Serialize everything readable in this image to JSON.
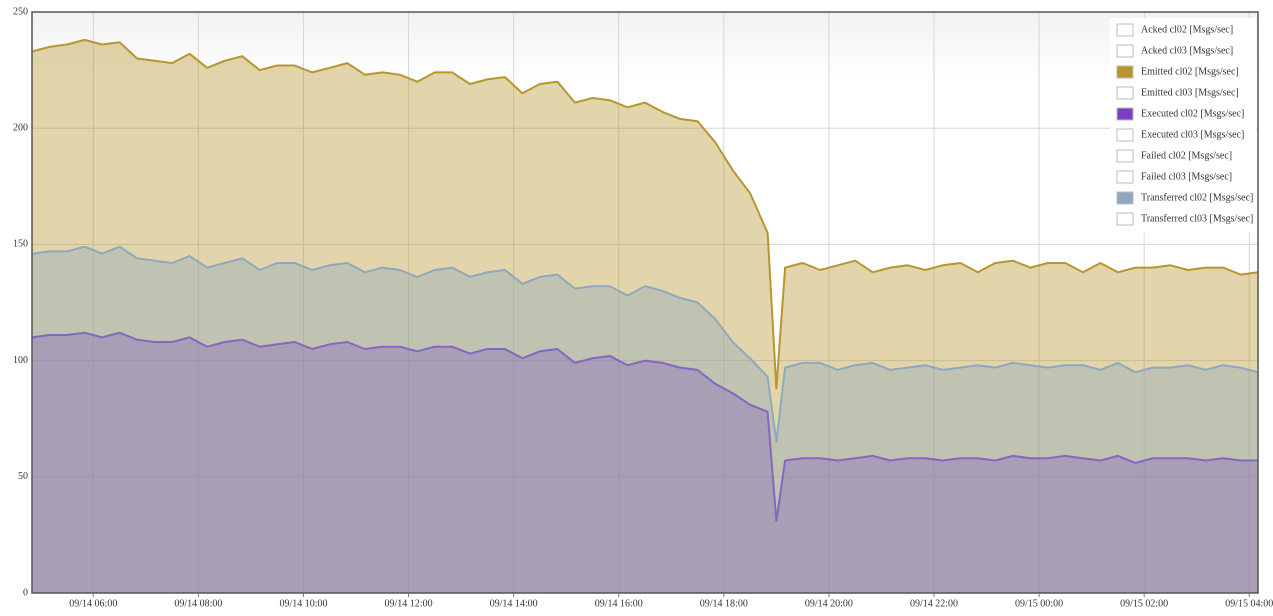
{
  "chart_data": {
    "type": "area",
    "x": [
      "09/14 04:50",
      "09/14 05:10",
      "09/14 05:30",
      "09/14 05:50",
      "09/14 06:10",
      "09/14 06:30",
      "09/14 06:50",
      "09/14 07:10",
      "09/14 07:30",
      "09/14 07:50",
      "09/14 08:10",
      "09/14 08:30",
      "09/14 08:50",
      "09/14 09:10",
      "09/14 09:30",
      "09/14 09:50",
      "09/14 10:10",
      "09/14 10:30",
      "09/14 10:50",
      "09/14 11:10",
      "09/14 11:30",
      "09/14 11:50",
      "09/14 12:10",
      "09/14 12:30",
      "09/14 12:50",
      "09/14 13:10",
      "09/14 13:30",
      "09/14 13:50",
      "09/14 14:10",
      "09/14 14:30",
      "09/14 14:50",
      "09/14 15:10",
      "09/14 15:30",
      "09/14 15:50",
      "09/14 16:10",
      "09/14 16:30",
      "09/14 16:50",
      "09/14 17:10",
      "09/14 17:30",
      "09/14 17:50",
      "09/14 18:10",
      "09/14 18:30",
      "09/14 18:50",
      "09/14 19:00",
      "09/14 19:10",
      "09/14 19:30",
      "09/14 19:50",
      "09/14 20:10",
      "09/14 20:30",
      "09/14 20:50",
      "09/14 21:10",
      "09/14 21:30",
      "09/14 21:50",
      "09/14 22:10",
      "09/14 22:30",
      "09/14 22:50",
      "09/14 23:10",
      "09/14 23:30",
      "09/14 23:50",
      "09/15 00:10",
      "09/15 00:30",
      "09/15 00:50",
      "09/15 01:10",
      "09/15 01:30",
      "09/15 01:50",
      "09/15 02:10",
      "09/15 02:30",
      "09/15 02:50",
      "09/15 03:10",
      "09/15 03:30",
      "09/15 03:50",
      "09/15 04:10"
    ],
    "xlim": [
      "09/14 04:50",
      "09/15 04:10"
    ],
    "xticks": [
      "09/14 06:00",
      "09/14 08:00",
      "09/14 10:00",
      "09/14 12:00",
      "09/14 14:00",
      "09/14 16:00",
      "09/14 18:00",
      "09/14 20:00",
      "09/14 22:00",
      "09/15 00:00",
      "09/15 02:00",
      "09/15 04:00"
    ],
    "ylim": [
      0,
      250
    ],
    "yticks": [
      0,
      50,
      100,
      150,
      200,
      250
    ],
    "grid": true,
    "legend": "top-right",
    "series": [
      {
        "name": "Acked cl02 [Msgs/sec]",
        "color": "#ffffff",
        "visible": false
      },
      {
        "name": "Acked cl03 [Msgs/sec]",
        "color": "#ffffff",
        "visible": false
      },
      {
        "name": "Emitted cl02 [Msgs/sec]",
        "color": "#b8962e",
        "visible": true,
        "values": [
          233,
          235,
          236,
          238,
          236,
          237,
          230,
          229,
          228,
          232,
          226,
          229,
          231,
          225,
          227,
          227,
          224,
          226,
          228,
          223,
          224,
          223,
          220,
          224,
          224,
          219,
          221,
          222,
          215,
          219,
          220,
          211,
          213,
          212,
          209,
          211,
          207,
          204,
          203,
          194,
          182,
          172,
          155,
          88,
          140,
          142,
          139,
          141,
          143,
          138,
          140,
          141,
          139,
          141,
          142,
          138,
          142,
          143,
          140,
          142,
          142,
          138,
          142,
          138,
          140,
          140,
          141,
          139,
          140,
          140,
          137,
          138
        ]
      },
      {
        "name": "Emitted cl03 [Msgs/sec]",
        "color": "#ffffff",
        "visible": false
      },
      {
        "name": "Executed cl02 [Msgs/sec]",
        "color": "#7b3fbf",
        "visible": true,
        "values": [
          110,
          111,
          111,
          112,
          110,
          112,
          109,
          108,
          108,
          110,
          106,
          108,
          109,
          106,
          107,
          108,
          105,
          107,
          108,
          105,
          106,
          106,
          104,
          106,
          106,
          103,
          105,
          105,
          101,
          104,
          105,
          99,
          101,
          102,
          98,
          100,
          99,
          97,
          96,
          90,
          86,
          81,
          78,
          31,
          57,
          58,
          58,
          57,
          58,
          59,
          57,
          58,
          58,
          57,
          58,
          58,
          57,
          59,
          58,
          58,
          59,
          58,
          57,
          59,
          56,
          58,
          58,
          58,
          57,
          58,
          57,
          57
        ]
      },
      {
        "name": "Executed cl03 [Msgs/sec]",
        "color": "#ffffff",
        "visible": false
      },
      {
        "name": "Failed cl02 [Msgs/sec]",
        "color": "#ffffff",
        "visible": false
      },
      {
        "name": "Failed cl03 [Msgs/sec]",
        "color": "#ffffff",
        "visible": false
      },
      {
        "name": "Transferred cl02 [Msgs/sec]",
        "color": "#8fa8bf",
        "visible": true,
        "values": [
          146,
          147,
          147,
          149,
          146,
          149,
          144,
          143,
          142,
          145,
          140,
          142,
          144,
          139,
          142,
          142,
          139,
          141,
          142,
          138,
          140,
          139,
          136,
          139,
          140,
          136,
          138,
          139,
          133,
          136,
          137,
          131,
          132,
          132,
          128,
          132,
          130,
          127,
          125,
          118,
          108,
          101,
          93,
          65,
          97,
          99,
          99,
          96,
          98,
          99,
          96,
          97,
          98,
          96,
          97,
          98,
          97,
          99,
          98,
          97,
          98,
          98,
          96,
          99,
          95,
          97,
          97,
          98,
          96,
          98,
          97,
          95
        ]
      },
      {
        "name": "Transferred cl03 [Msgs/sec]",
        "color": "#ffffff",
        "visible": false
      }
    ]
  }
}
